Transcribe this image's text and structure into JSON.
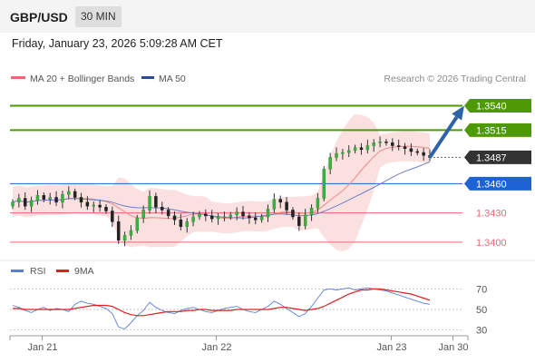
{
  "header": {
    "pair": "GBP/USD",
    "interval": "30 MIN"
  },
  "timestamp": "Friday, January 23, 2026 5:09:28 AM CET",
  "credit": "Research © 2026 Trading Central",
  "legend": {
    "ma_bollinger": "MA 20 + Bollinger Bands",
    "ma50": "MA 50",
    "rsi": "RSI",
    "rsi_ma": "9MA"
  },
  "colors": {
    "resistance": "#4e9a06",
    "support": "#ee6677",
    "current": "#333333",
    "pivot": "#1e63d6",
    "bollinger": "#f7c6c6",
    "ma50": "#6b7fcc",
    "rsi": "#5b7fd6",
    "rsi_ma": "#e02020",
    "arrow": "#2d63a8"
  },
  "chart_data": [
    {
      "type": "candlestick",
      "x_labels": [
        "Jan 21",
        "Jan 22",
        "Jan 23",
        "Jan 30"
      ],
      "ylim": [
        1.3385,
        1.356
      ],
      "levels": [
        {
          "value": 1.354,
          "label": "1.3540",
          "kind": "resistance"
        },
        {
          "value": 1.3515,
          "label": "1.3515",
          "kind": "resistance"
        },
        {
          "value": 1.3487,
          "label": "1.3487",
          "kind": "current"
        },
        {
          "value": 1.346,
          "label": "1.3460",
          "kind": "pivot"
        },
        {
          "value": 1.343,
          "label": "1.3430",
          "kind": "support"
        },
        {
          "value": 1.34,
          "label": "1.3400",
          "kind": "support"
        }
      ],
      "close_path": [
        1.3441,
        1.3445,
        1.3437,
        1.3443,
        1.3448,
        1.3444,
        1.3446,
        1.3441,
        1.3449,
        1.3452,
        1.3446,
        1.3441,
        1.3437,
        1.3438,
        1.3436,
        1.3432,
        1.3421,
        1.3402,
        1.3407,
        1.3412,
        1.3425,
        1.3433,
        1.3447,
        1.3436,
        1.3433,
        1.3427,
        1.3423,
        1.3416,
        1.3421,
        1.3426,
        1.3429,
        1.3427,
        1.3424,
        1.3426,
        1.3426,
        1.3428,
        1.3431,
        1.3427,
        1.3425,
        1.3423,
        1.3426,
        1.3434,
        1.3444,
        1.3441,
        1.3433,
        1.3426,
        1.3417,
        1.3428,
        1.3435,
        1.3445,
        1.3475,
        1.3487,
        1.3491,
        1.3492,
        1.3494,
        1.3497,
        1.3495,
        1.3499,
        1.3502,
        1.3503,
        1.3502,
        1.3499,
        1.3498,
        1.3496,
        1.3493,
        1.3492,
        1.3489,
        1.3487
      ],
      "forecast": {
        "from": 1.3487,
        "to": 1.354
      }
    },
    {
      "type": "line",
      "title": "RSI",
      "yticks": [
        70,
        50,
        30
      ],
      "ylim": [
        20,
        80
      ],
      "series": [
        {
          "name": "RSI",
          "values": [
            54,
            52,
            49,
            47,
            50,
            52,
            49,
            51,
            50,
            48,
            55,
            58,
            56,
            55,
            53,
            51,
            46,
            33,
            31,
            37,
            44,
            49,
            57,
            52,
            49,
            47,
            46,
            49,
            51,
            52,
            50,
            48,
            47,
            49,
            51,
            52,
            53,
            50,
            48,
            47,
            50,
            53,
            58,
            55,
            51,
            47,
            43,
            46,
            53,
            61,
            69,
            70,
            69,
            70,
            71,
            69,
            70,
            71,
            70,
            69,
            68,
            66,
            64,
            62,
            60,
            58,
            56,
            55
          ]
        },
        {
          "name": "9MA",
          "values": [
            51,
            51,
            50,
            50,
            50,
            50,
            50,
            50,
            50,
            50,
            51,
            52,
            53,
            54,
            54,
            54,
            53,
            50,
            47,
            45,
            44,
            44,
            45,
            46,
            47,
            48,
            48,
            48,
            49,
            49,
            50,
            50,
            49,
            49,
            49,
            49,
            50,
            50,
            50,
            50,
            50,
            50,
            51,
            52,
            52,
            51,
            50,
            49,
            50,
            51,
            53,
            56,
            59,
            62,
            65,
            67,
            69,
            69,
            70,
            70,
            69,
            68,
            67,
            66,
            65,
            63,
            61,
            59
          ]
        }
      ]
    }
  ]
}
